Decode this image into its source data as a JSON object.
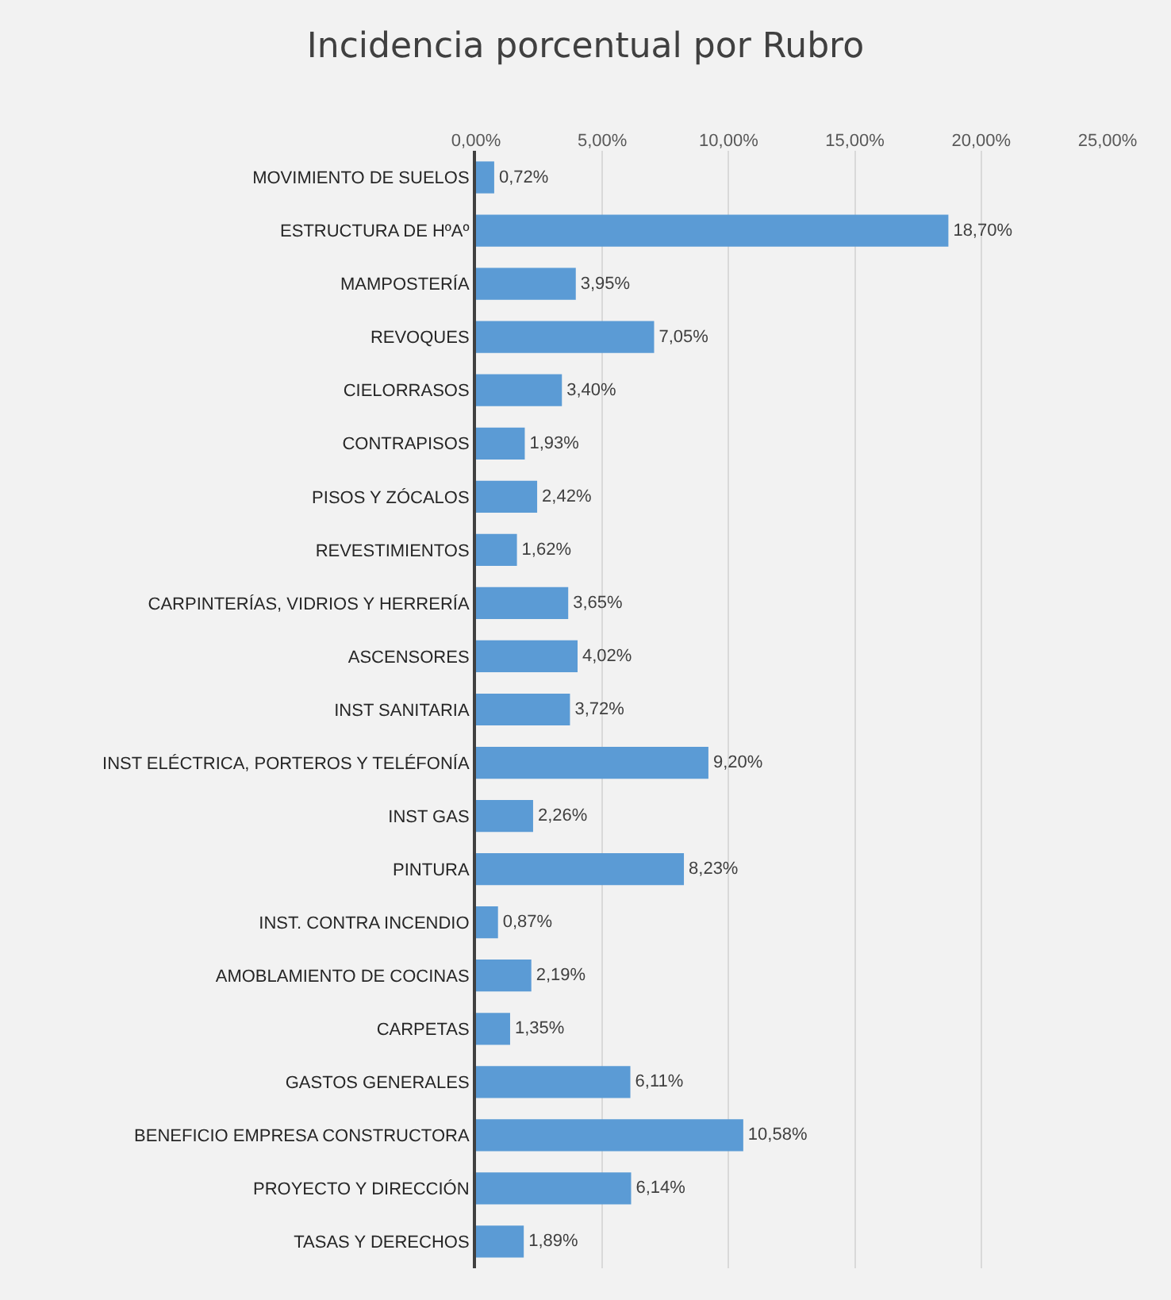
{
  "chart_data": {
    "type": "bar",
    "orientation": "horizontal",
    "title": "Incidencia porcentual por Rubro",
    "categories": [
      "MOVIMIENTO DE SUELOS",
      "ESTRUCTURA DE HºAº",
      "MAMPOSTERÍA",
      "REVOQUES",
      "CIELORRASOS",
      "CONTRAPISOS",
      "PISOS Y ZÓCALOS",
      "REVESTIMIENTOS",
      "CARPINTERÍAS, VIDRIOS Y HERRERÍA",
      "ASCENSORES",
      "INST SANITARIA",
      "INST ELÉCTRICA, PORTEROS Y TELÉFONÍA",
      "INST GAS",
      "PINTURA",
      "INST. CONTRA INCENDIO",
      "AMOBLAMIENTO DE COCINAS",
      "CARPETAS",
      "GASTOS GENERALES",
      "BENEFICIO EMPRESA CONSTRUCTORA",
      "PROYECTO Y DIRECCIÓN",
      "TASAS Y DERECHOS"
    ],
    "values": [
      0.72,
      18.7,
      3.95,
      7.05,
      3.4,
      1.93,
      2.42,
      1.62,
      3.65,
      4.02,
      3.72,
      9.2,
      2.26,
      8.23,
      0.87,
      2.19,
      1.35,
      6.11,
      10.58,
      6.14,
      1.89
    ],
    "value_labels": [
      "0,72%",
      "18,70%",
      "3,95%",
      "7,05%",
      "3,40%",
      "1,93%",
      "2,42%",
      "1,62%",
      "3,65%",
      "4,02%",
      "3,72%",
      "9,20%",
      "2,26%",
      "8,23%",
      "0,87%",
      "2,19%",
      "1,35%",
      "6,11%",
      "10,58%",
      "6,14%",
      "1,89%"
    ],
    "color": "#5b9bd5",
    "xlim": [
      0,
      25
    ],
    "xticks": [
      {
        "value": 0,
        "label": "0,00%"
      },
      {
        "value": 5,
        "label": "5,00%"
      },
      {
        "value": 10,
        "label": "10,00%"
      },
      {
        "value": 15,
        "label": "15,00%"
      },
      {
        "value": 20,
        "label": "20,00%"
      },
      {
        "value": 25,
        "label": "25,00%"
      }
    ],
    "grid": "x"
  }
}
